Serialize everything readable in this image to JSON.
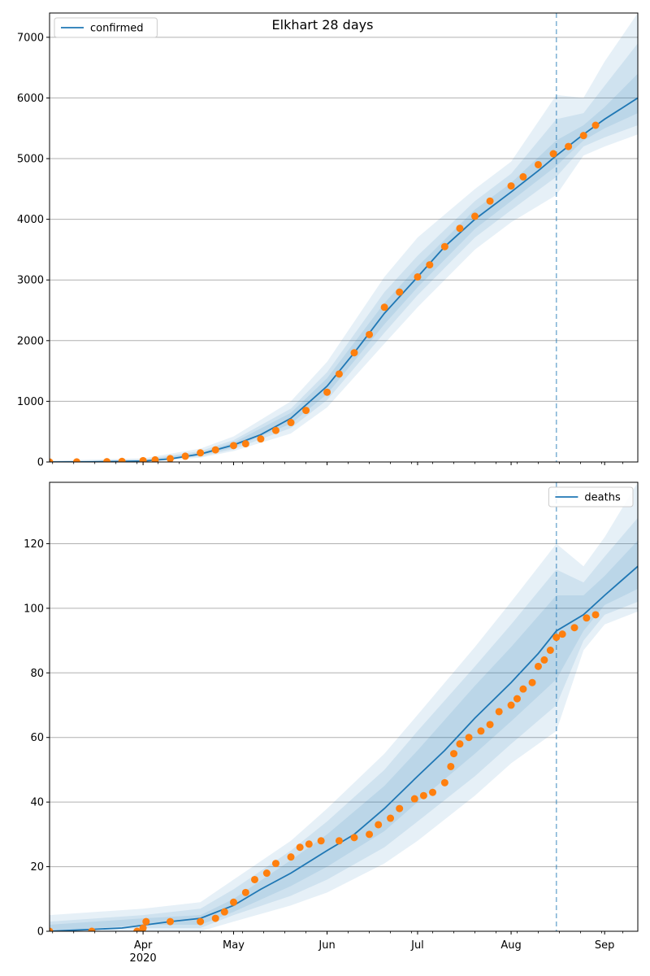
{
  "chart_data": [
    {
      "type": "line",
      "title": "Elkhart 28 days",
      "xlabel": "",
      "ylabel": "",
      "ylim": [
        0,
        7400
      ],
      "yticks": [
        0,
        1000,
        2000,
        3000,
        4000,
        5000,
        6000,
        7000
      ],
      "grid": "horizontal",
      "legend": {
        "placement": "top-left",
        "entries": [
          {
            "label": "confirmed",
            "color": "#1f77b4"
          }
        ]
      },
      "forecast_start": "2020-08-16",
      "series": [
        {
          "name": "confirmed",
          "kind": "model-line",
          "color": "#1f77b4",
          "points": [
            [
              "2020-03-01",
              0
            ],
            [
              "2020-03-15",
              2
            ],
            [
              "2020-04-01",
              15
            ],
            [
              "2020-04-10",
              50
            ],
            [
              "2020-04-20",
              130
            ],
            [
              "2020-05-01",
              280
            ],
            [
              "2020-05-10",
              450
            ],
            [
              "2020-05-20",
              720
            ],
            [
              "2020-06-01",
              1250
            ],
            [
              "2020-06-10",
              1800
            ],
            [
              "2020-06-20",
              2450
            ],
            [
              "2020-07-01",
              3050
            ],
            [
              "2020-07-10",
              3550
            ],
            [
              "2020-07-20",
              4000
            ],
            [
              "2020-08-01",
              4450
            ],
            [
              "2020-08-10",
              4800
            ],
            [
              "2020-08-16",
              5050
            ],
            [
              "2020-08-25",
              5400
            ],
            [
              "2020-09-01",
              5650
            ],
            [
              "2020-09-12",
              6000
            ]
          ]
        },
        {
          "name": "",
          "kind": "observed-points",
          "color": "#ff7f0e",
          "points": [
            [
              "2020-03-01",
              0
            ],
            [
              "2020-03-10",
              1
            ],
            [
              "2020-03-20",
              5
            ],
            [
              "2020-03-25",
              10
            ],
            [
              "2020-04-01",
              22
            ],
            [
              "2020-04-05",
              35
            ],
            [
              "2020-04-10",
              55
            ],
            [
              "2020-04-15",
              95
            ],
            [
              "2020-04-20",
              150
            ],
            [
              "2020-04-25",
              200
            ],
            [
              "2020-05-01",
              270
            ],
            [
              "2020-05-05",
              300
            ],
            [
              "2020-05-10",
              380
            ],
            [
              "2020-05-15",
              520
            ],
            [
              "2020-05-20",
              650
            ],
            [
              "2020-05-25",
              850
            ],
            [
              "2020-06-01",
              1150
            ],
            [
              "2020-06-05",
              1450
            ],
            [
              "2020-06-10",
              1800
            ],
            [
              "2020-06-15",
              2100
            ],
            [
              "2020-06-20",
              2550
            ],
            [
              "2020-06-25",
              2800
            ],
            [
              "2020-07-01",
              3050
            ],
            [
              "2020-07-05",
              3250
            ],
            [
              "2020-07-10",
              3550
            ],
            [
              "2020-07-15",
              3850
            ],
            [
              "2020-07-20",
              4050
            ],
            [
              "2020-07-25",
              4300
            ],
            [
              "2020-08-01",
              4550
            ],
            [
              "2020-08-05",
              4700
            ],
            [
              "2020-08-10",
              4900
            ],
            [
              "2020-08-15",
              5080
            ],
            [
              "2020-08-20",
              5200
            ],
            [
              "2020-08-25",
              5380
            ],
            [
              "2020-08-29",
              5550
            ]
          ]
        }
      ],
      "bands": [
        {
          "name": "",
          "points": [
            [
              "2020-03-01",
              0,
              20
            ],
            [
              "2020-04-01",
              0,
              60
            ],
            [
              "2020-04-20",
              70,
              220
            ],
            [
              "2020-05-01",
              180,
              420
            ],
            [
              "2020-05-20",
              470,
              1000
            ],
            [
              "2020-06-01",
              900,
              1650
            ],
            [
              "2020-06-20",
              1950,
              3050
            ],
            [
              "2020-07-01",
              2550,
              3700
            ],
            [
              "2020-07-20",
              3500,
              4500
            ],
            [
              "2020-08-01",
              3950,
              4950
            ],
            [
              "2020-08-16",
              4400,
              6050
            ],
            [
              "2020-08-25",
              5050,
              6000
            ],
            [
              "2020-09-01",
              5200,
              6600
            ],
            [
              "2020-09-12",
              5400,
              7400
            ]
          ]
        },
        {
          "name": "",
          "points": [
            [
              "2020-03-01",
              0,
              12
            ],
            [
              "2020-04-01",
              5,
              40
            ],
            [
              "2020-04-20",
              90,
              180
            ],
            [
              "2020-05-01",
              210,
              360
            ],
            [
              "2020-05-20",
              560,
              880
            ],
            [
              "2020-06-01",
              1020,
              1480
            ],
            [
              "2020-06-20",
              2130,
              2800
            ],
            [
              "2020-07-01",
              2750,
              3400
            ],
            [
              "2020-07-20",
              3700,
              4300
            ],
            [
              "2020-08-01",
              4150,
              4750
            ],
            [
              "2020-08-16",
              4700,
              5650
            ],
            [
              "2020-08-25",
              5200,
              5750
            ],
            [
              "2020-09-01",
              5350,
              6200
            ],
            [
              "2020-09-12",
              5550,
              6900
            ]
          ]
        },
        {
          "name": "",
          "points": [
            [
              "2020-03-01",
              0,
              6
            ],
            [
              "2020-04-01",
              10,
              25
            ],
            [
              "2020-04-20",
              110,
              155
            ],
            [
              "2020-05-01",
              240,
              320
            ],
            [
              "2020-05-20",
              630,
              810
            ],
            [
              "2020-06-01",
              1120,
              1380
            ],
            [
              "2020-06-20",
              2270,
              2620
            ],
            [
              "2020-07-01",
              2880,
              3220
            ],
            [
              "2020-07-20",
              3840,
              4160
            ],
            [
              "2020-08-01",
              4300,
              4600
            ],
            [
              "2020-08-16",
              4880,
              5300
            ],
            [
              "2020-08-25",
              5300,
              5550
            ],
            [
              "2020-09-01",
              5500,
              5850
            ],
            [
              "2020-09-12",
              5750,
              6400
            ]
          ]
        }
      ]
    },
    {
      "type": "line",
      "title": "",
      "xlabel": "",
      "ylabel": "",
      "ylim": [
        0,
        139
      ],
      "yticks": [
        0,
        20,
        40,
        60,
        80,
        100,
        120
      ],
      "grid": "horizontal",
      "legend": {
        "placement": "top-right",
        "entries": [
          {
            "label": "deaths",
            "color": "#1f77b4"
          }
        ]
      },
      "forecast_start": "2020-08-16",
      "series": [
        {
          "name": "deaths",
          "kind": "model-line",
          "color": "#1f77b4",
          "points": [
            [
              "2020-03-01",
              0
            ],
            [
              "2020-03-25",
              1
            ],
            [
              "2020-04-10",
              3
            ],
            [
              "2020-04-20",
              4
            ],
            [
              "2020-05-01",
              8
            ],
            [
              "2020-05-10",
              13
            ],
            [
              "2020-05-20",
              18
            ],
            [
              "2020-06-01",
              25
            ],
            [
              "2020-06-10",
              30
            ],
            [
              "2020-06-20",
              38
            ],
            [
              "2020-07-01",
              48
            ],
            [
              "2020-07-10",
              56
            ],
            [
              "2020-07-20",
              66
            ],
            [
              "2020-08-01",
              77
            ],
            [
              "2020-08-10",
              86
            ],
            [
              "2020-08-16",
              93
            ],
            [
              "2020-08-25",
              98
            ],
            [
              "2020-09-01",
              104
            ],
            [
              "2020-09-12",
              113
            ]
          ]
        },
        {
          "name": "",
          "kind": "observed-points",
          "color": "#ff7f0e",
          "points": [
            [
              "2020-03-01",
              0
            ],
            [
              "2020-03-15",
              0
            ],
            [
              "2020-03-30",
              0
            ],
            [
              "2020-04-01",
              1
            ],
            [
              "2020-04-02",
              3
            ],
            [
              "2020-04-10",
              3
            ],
            [
              "2020-04-20",
              3
            ],
            [
              "2020-04-25",
              4
            ],
            [
              "2020-04-28",
              6
            ],
            [
              "2020-05-01",
              9
            ],
            [
              "2020-05-05",
              12
            ],
            [
              "2020-05-08",
              16
            ],
            [
              "2020-05-12",
              18
            ],
            [
              "2020-05-15",
              21
            ],
            [
              "2020-05-20",
              23
            ],
            [
              "2020-05-23",
              26
            ],
            [
              "2020-05-26",
              27
            ],
            [
              "2020-05-30",
              28
            ],
            [
              "2020-06-05",
              28
            ],
            [
              "2020-06-10",
              29
            ],
            [
              "2020-06-15",
              30
            ],
            [
              "2020-06-18",
              33
            ],
            [
              "2020-06-22",
              35
            ],
            [
              "2020-06-25",
              38
            ],
            [
              "2020-06-30",
              41
            ],
            [
              "2020-07-03",
              42
            ],
            [
              "2020-07-06",
              43
            ],
            [
              "2020-07-10",
              46
            ],
            [
              "2020-07-12",
              51
            ],
            [
              "2020-07-13",
              55
            ],
            [
              "2020-07-15",
              58
            ],
            [
              "2020-07-18",
              60
            ],
            [
              "2020-07-22",
              62
            ],
            [
              "2020-07-25",
              64
            ],
            [
              "2020-07-28",
              68
            ],
            [
              "2020-08-01",
              70
            ],
            [
              "2020-08-03",
              72
            ],
            [
              "2020-08-05",
              75
            ],
            [
              "2020-08-08",
              77
            ],
            [
              "2020-08-10",
              82
            ],
            [
              "2020-08-12",
              84
            ],
            [
              "2020-08-14",
              87
            ],
            [
              "2020-08-16",
              91
            ],
            [
              "2020-08-18",
              92
            ],
            [
              "2020-08-22",
              94
            ],
            [
              "2020-08-26",
              97
            ],
            [
              "2020-08-29",
              98
            ]
          ]
        }
      ],
      "bands": [
        {
          "name": "",
          "points": [
            [
              "2020-03-01",
              0,
              5
            ],
            [
              "2020-04-01",
              0,
              7
            ],
            [
              "2020-04-20",
              0,
              9
            ],
            [
              "2020-05-01",
              3,
              16
            ],
            [
              "2020-05-20",
              8,
              28
            ],
            [
              "2020-06-01",
              12,
              38
            ],
            [
              "2020-06-20",
              21,
              55
            ],
            [
              "2020-07-01",
              28,
              67
            ],
            [
              "2020-07-20",
              42,
              88
            ],
            [
              "2020-08-01",
              52,
              102
            ],
            [
              "2020-08-16",
              62,
              120
            ],
            [
              "2020-08-25",
              87,
              113
            ],
            [
              "2020-09-01",
              95,
              122
            ],
            [
              "2020-09-12",
              99,
              139
            ]
          ]
        },
        {
          "name": "",
          "points": [
            [
              "2020-03-01",
              0,
              3
            ],
            [
              "2020-04-01",
              1,
              5
            ],
            [
              "2020-04-20",
              1,
              7
            ],
            [
              "2020-05-01",
              5,
              13
            ],
            [
              "2020-05-20",
              11,
              25
            ],
            [
              "2020-06-01",
              16,
              34
            ],
            [
              "2020-06-20",
              26,
              50
            ],
            [
              "2020-07-01",
              34,
              62
            ],
            [
              "2020-07-20",
              48,
              82
            ],
            [
              "2020-08-01",
              58,
              95
            ],
            [
              "2020-08-16",
              70,
              112
            ],
            [
              "2020-08-25",
              90,
              108
            ],
            [
              "2020-09-01",
              98,
              116
            ],
            [
              "2020-09-12",
              102,
              128
            ]
          ]
        },
        {
          "name": "",
          "points": [
            [
              "2020-03-01",
              0,
              2
            ],
            [
              "2020-04-01",
              2,
              4
            ],
            [
              "2020-04-20",
              2,
              5
            ],
            [
              "2020-05-01",
              6,
              10
            ],
            [
              "2020-05-20",
              14,
              22
            ],
            [
              "2020-06-01",
              20,
              30
            ],
            [
              "2020-06-20",
              31,
              45
            ],
            [
              "2020-07-01",
              40,
              56
            ],
            [
              "2020-07-20",
              55,
              76
            ],
            [
              "2020-08-01",
              65,
              88
            ],
            [
              "2020-08-16",
              78,
              104
            ],
            [
              "2020-08-25",
              93,
              104
            ],
            [
              "2020-09-01",
              101,
              110
            ],
            [
              "2020-09-12",
              106,
              121
            ]
          ]
        }
      ]
    }
  ],
  "x_axis": {
    "start": "2020-03-01",
    "end": "2020-09-12",
    "major_ticks": [
      {
        "date": "2020-04-01",
        "label": "Apr"
      },
      {
        "date": "2020-05-01",
        "label": "May"
      },
      {
        "date": "2020-06-01",
        "label": "Jun"
      },
      {
        "date": "2020-07-01",
        "label": "Jul"
      },
      {
        "date": "2020-08-01",
        "label": "Aug"
      },
      {
        "date": "2020-09-01",
        "label": "Sep"
      }
    ],
    "year_label": "2020",
    "year_label_under": "2020-04-01"
  },
  "colors": {
    "model_line": "#1f77b4",
    "observed": "#ff7f0e",
    "band": "#1f77b4",
    "forecast_line": "#1f77b4",
    "grid": "#b0b0b0"
  }
}
